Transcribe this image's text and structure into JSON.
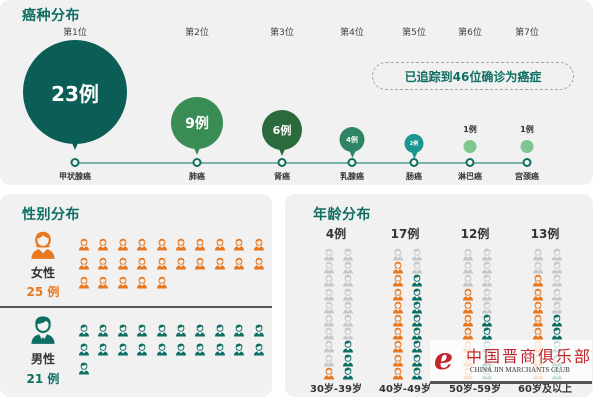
{
  "colors": {
    "title": "#0e6e62",
    "female": "#e8781f",
    "male": "#0e6e62",
    "inactive": "#c8c8c8",
    "panel": "#f1f1f1"
  },
  "cancer": {
    "title": "癌种分布",
    "tracked_text": "已追踪到46位确诊为癌症",
    "items": [
      {
        "rank": "第1位",
        "count_label": "23例",
        "type": "甲状腺癌",
        "count": 23,
        "color": "#0b5e56"
      },
      {
        "rank": "第2位",
        "count_label": "9例",
        "type": "肺癌",
        "count": 9,
        "color": "#3a8c55"
      },
      {
        "rank": "第3位",
        "count_label": "6例",
        "type": "肾癌",
        "count": 6,
        "color": "#2a6a3c"
      },
      {
        "rank": "第4位",
        "count_label": "4例",
        "type": "乳腺癌",
        "count": 4,
        "color": "#2f8563"
      },
      {
        "rank": "第5位",
        "count_label": "2例",
        "type": "肠癌",
        "count": 2,
        "color": "#1c9691"
      },
      {
        "rank": "第6位",
        "count_label": "1例",
        "type": "淋巴癌",
        "count": 1,
        "color": "#7fc690"
      },
      {
        "rank": "第7位",
        "count_label": "1例",
        "type": "宫颈癌",
        "count": 1,
        "color": "#7fc690"
      }
    ]
  },
  "gender": {
    "title": "性别分布",
    "female": {
      "label": "女性",
      "count_label": "25 例",
      "count": 25
    },
    "male": {
      "label": "男性",
      "count_label": "21 例",
      "count": 21
    }
  },
  "age": {
    "title": "年龄分布",
    "groups": [
      {
        "label": "30岁-39岁",
        "count_label": "4例",
        "female": 1,
        "male": 3
      },
      {
        "label": "40岁-49岁",
        "count_label": "17例",
        "female": 9,
        "male": 8
      },
      {
        "label": "50岁-59岁",
        "count_label": "12例",
        "female": 7,
        "male": 5
      },
      {
        "label": "60岁及以上",
        "count_label": "13例",
        "female": 8,
        "male": 5
      }
    ]
  },
  "watermark": {
    "cn": "中国晋商俱乐部",
    "en": "CHINA JIN MARCHANTS CLUB",
    "logo": "e"
  },
  "chart_data": [
    {
      "type": "bar",
      "title": "癌种分布",
      "categories": [
        "甲状腺癌",
        "肺癌",
        "肾癌",
        "乳腺癌",
        "肠癌",
        "淋巴癌",
        "宫颈癌"
      ],
      "values": [
        23,
        9,
        6,
        4,
        2,
        1,
        1
      ],
      "ranks": [
        "第1位",
        "第2位",
        "第3位",
        "第4位",
        "第5位",
        "第6位",
        "第7位"
      ],
      "annotation": "已追踪到46位确诊为癌症",
      "unit": "例"
    },
    {
      "type": "pie",
      "title": "性别分布",
      "categories": [
        "女性",
        "男性"
      ],
      "values": [
        25,
        21
      ],
      "unit": "例"
    },
    {
      "type": "bar",
      "title": "年龄分布",
      "categories": [
        "30岁-39岁",
        "40岁-49岁",
        "50岁-59岁",
        "60岁及以上"
      ],
      "values": [
        4,
        17,
        12,
        13
      ],
      "series": [
        {
          "name": "女性",
          "values": [
            1,
            9,
            7,
            8
          ]
        },
        {
          "name": "男性",
          "values": [
            3,
            8,
            5,
            5
          ]
        }
      ],
      "unit": "例"
    }
  ]
}
